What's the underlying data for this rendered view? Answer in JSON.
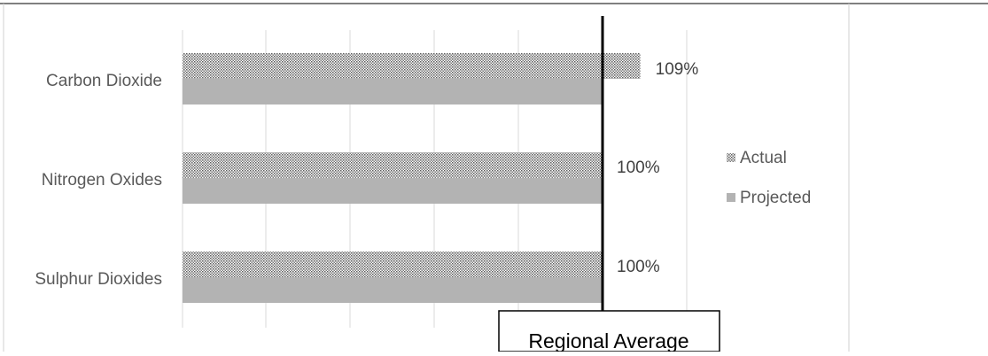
{
  "chart_data": {
    "type": "bar",
    "orientation": "horizontal",
    "categories": [
      "Carbon Dioxide",
      "Nitrogen Oxides",
      "Sulphur Dioxides"
    ],
    "series": [
      {
        "name": "Actual",
        "values": [
          109,
          100,
          100
        ],
        "pattern": "dotted"
      },
      {
        "name": "Projected",
        "values": [
          100,
          100,
          100
        ],
        "color": "#b3b3b3"
      }
    ],
    "data_labels": [
      "109%",
      "100%",
      "100%"
    ],
    "xlim": [
      0,
      150
    ],
    "x_gridlines": [
      0,
      20,
      40,
      60,
      80,
      100,
      120,
      150
    ],
    "reference_line": {
      "value": 100,
      "label": "Regional Average",
      "color": "#000000"
    },
    "legend": {
      "position": "right"
    },
    "grid": true
  }
}
